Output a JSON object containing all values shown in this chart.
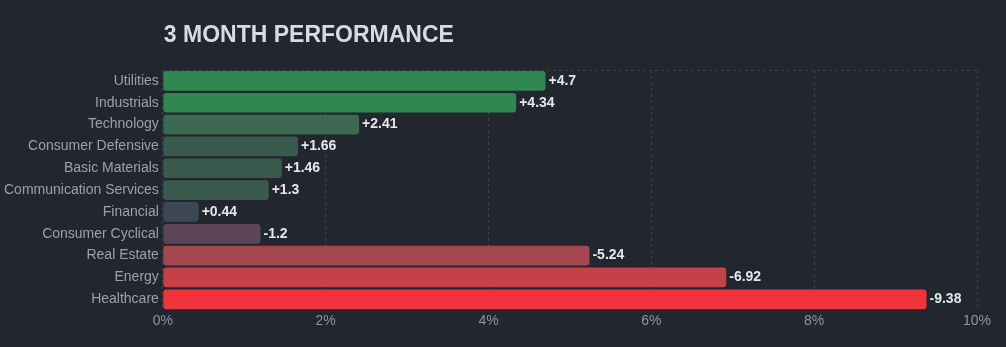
{
  "chart_data": {
    "type": "bar",
    "orientation": "horizontal",
    "title": "3 MONTH PERFORMANCE",
    "categories": [
      "Utilities",
      "Industrials",
      "Technology",
      "Consumer Defensive",
      "Basic Materials",
      "Communication Services",
      "Financial",
      "Consumer Cyclical",
      "Real Estate",
      "Energy",
      "Healthcare"
    ],
    "values": [
      4.7,
      4.34,
      2.41,
      1.66,
      1.46,
      1.3,
      0.44,
      -1.2,
      -5.24,
      -6.92,
      -9.38
    ],
    "base": [
      0,
      0,
      0,
      0,
      0,
      0,
      0,
      1.2,
      5.24,
      6.92,
      9.38
    ],
    "value_labels": [
      "+4.7",
      "+4.34",
      "+2.41",
      "+1.66",
      "+1.46",
      "+1.3",
      "+0.44",
      "-1.2",
      "-5.24",
      "-6.92",
      "-9.38"
    ],
    "colors": [
      "#30874f",
      "#30874f",
      "#3a6850",
      "#3a5a4e",
      "#3a5a4e",
      "#3a5a4e",
      "#3d4754",
      "#5b4556",
      "#a5474f",
      "#c84047",
      "#ef353b"
    ],
    "xlim": [
      0,
      10
    ],
    "xticks": [
      {
        "value": 0,
        "label": "0%"
      },
      {
        "value": 2,
        "label": "2%"
      },
      {
        "value": 4,
        "label": "4%"
      },
      {
        "value": 6,
        "label": "6%"
      },
      {
        "value": 8,
        "label": "8%"
      },
      {
        "value": 10,
        "label": "10%"
      }
    ],
    "grid": "x"
  }
}
